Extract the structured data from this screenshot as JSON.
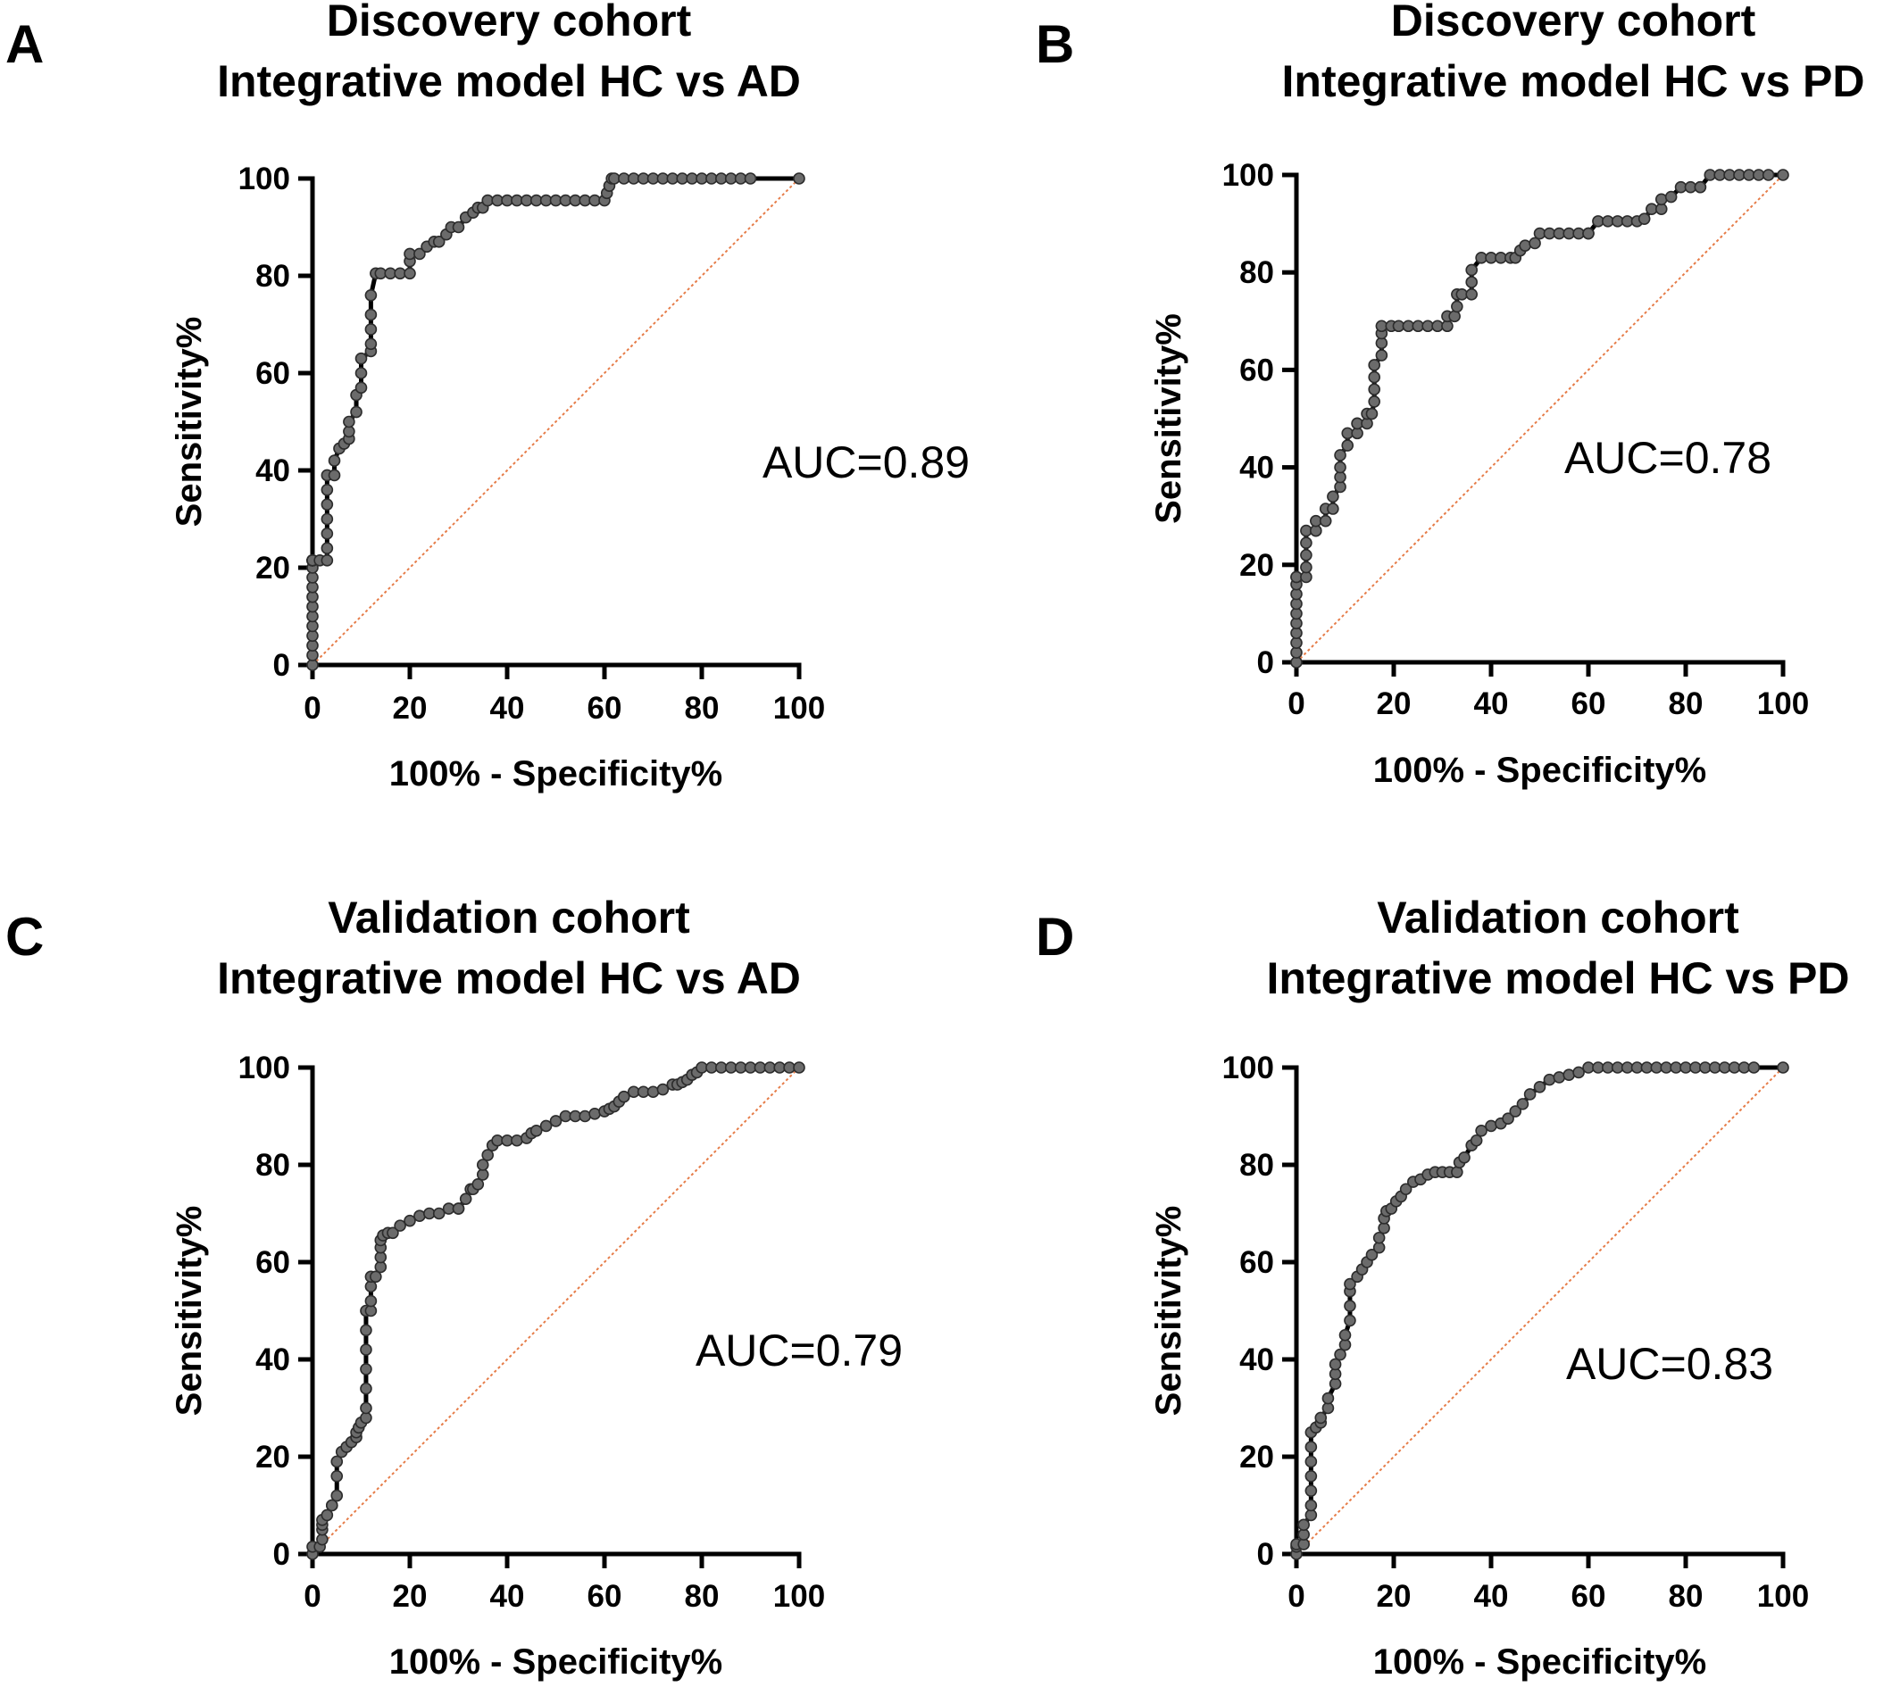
{
  "chart_data": [
    {
      "type": "line",
      "panel_label": "A",
      "title_line1": "Discovery cohort",
      "title_line2": "Integrative model HC vs AD",
      "xlabel": "100% - Specificity%",
      "ylabel": "Sensitivity%",
      "xlim": [
        0,
        100
      ],
      "ylim": [
        0,
        100
      ],
      "x_ticks": [
        0,
        20,
        40,
        60,
        80,
        100
      ],
      "y_ticks": [
        0,
        20,
        40,
        60,
        80,
        100
      ],
      "annotation": "AUC=0.89",
      "reference_line": {
        "x": [
          0,
          100
        ],
        "y": [
          0,
          100
        ],
        "color": "#e67c48",
        "style": "dotted"
      },
      "series": [
        {
          "x": [
            0,
            0,
            0,
            0,
            0,
            0,
            0,
            0,
            0,
            0,
            0,
            0,
            0,
            0,
            0,
            0,
            0,
            0,
            0,
            1.5,
            3,
            3,
            3,
            3,
            3,
            3,
            3,
            4.5,
            4.5,
            5.5,
            6.5,
            7.5,
            7.5,
            7.5,
            9,
            9,
            10,
            10,
            10,
            12,
            12,
            12,
            12,
            12,
            13,
            14,
            16,
            18,
            20,
            20,
            20,
            22,
            23.5,
            25,
            26,
            27.5,
            28.5,
            30,
            31.5,
            33,
            34,
            35,
            36,
            38,
            40,
            42,
            44,
            46,
            48,
            50,
            52,
            54,
            56,
            58,
            60,
            60.5,
            61,
            61.5,
            62,
            64,
            66,
            68,
            70,
            72,
            74,
            76,
            78,
            80,
            82,
            84,
            86,
            88,
            90,
            100
          ],
          "y": [
            0,
            2,
            4,
            6,
            8,
            10,
            12,
            14,
            16,
            18,
            20,
            21.5,
            21.5,
            21.5,
            21.5,
            21.5,
            21.5,
            21.5,
            21.5,
            21.5,
            21.5,
            24,
            27,
            30,
            33,
            36,
            39,
            39,
            42,
            44.5,
            45.5,
            46.5,
            48,
            50,
            52,
            55.5,
            57,
            60,
            63,
            64.5,
            66,
            69,
            72,
            76,
            80.5,
            80.5,
            80.5,
            80.5,
            80.5,
            83,
            84.5,
            84.5,
            86,
            87,
            87,
            88.5,
            90,
            90,
            92,
            93,
            94,
            94,
            95.5,
            95.5,
            95.5,
            95.5,
            95.5,
            95.5,
            95.5,
            95.5,
            95.5,
            95.5,
            95.5,
            95.5,
            95.5,
            97,
            98.5,
            100,
            100,
            100,
            100,
            100,
            100,
            100,
            100,
            100,
            100,
            100,
            100,
            100,
            100,
            100,
            100,
            100
          ]
        }
      ]
    },
    {
      "type": "line",
      "panel_label": "B",
      "title_line1": "Discovery cohort",
      "title_line2": "Integrative model HC vs PD",
      "xlabel": "100% - Specificity%",
      "ylabel": "Sensitivity%",
      "xlim": [
        0,
        100
      ],
      "ylim": [
        0,
        100
      ],
      "x_ticks": [
        0,
        20,
        40,
        60,
        80,
        100
      ],
      "y_ticks": [
        0,
        20,
        40,
        60,
        80,
        100
      ],
      "annotation": "AUC=0.78",
      "reference_line": {
        "x": [
          0,
          100
        ],
        "y": [
          0,
          100
        ],
        "color": "#e67c48",
        "style": "dotted"
      },
      "series": [
        {
          "x": [
            0,
            0,
            0,
            0,
            0,
            0,
            0,
            0,
            0,
            0,
            0,
            2,
            2,
            2,
            2,
            2,
            4,
            4,
            4,
            6,
            6,
            7.5,
            7.5,
            9,
            9,
            9,
            9,
            10.5,
            10.5,
            12.5,
            12.5,
            12.5,
            14.5,
            14.5,
            15.5,
            16,
            16,
            16,
            16,
            17.5,
            17.5,
            17.5,
            17.5,
            19.5,
            21,
            23,
            25,
            27,
            29,
            31,
            31,
            32.5,
            33,
            33,
            34,
            36,
            36,
            36,
            38,
            40,
            42,
            44,
            45,
            46,
            47,
            49,
            50,
            52,
            54,
            56,
            58,
            60,
            60,
            62,
            64,
            66,
            68,
            70,
            71.5,
            73,
            75,
            75,
            77,
            79,
            81,
            83,
            83,
            85,
            87,
            89,
            91,
            93,
            95,
            97,
            100
          ],
          "y": [
            0,
            2,
            4,
            6,
            8,
            10,
            12,
            14,
            16,
            17.5,
            17.5,
            17.5,
            19.5,
            22,
            24.5,
            27,
            27,
            27,
            29,
            29,
            31.5,
            31.5,
            34,
            36,
            38,
            40,
            42.5,
            44.5,
            47,
            47,
            49,
            49,
            49,
            51,
            51,
            53.5,
            56,
            58.5,
            61,
            63,
            65.5,
            67.5,
            69,
            69,
            69,
            69,
            69,
            69,
            69,
            69,
            71,
            71,
            73,
            75.5,
            75.5,
            75.5,
            78,
            80.5,
            83,
            83,
            83,
            83,
            83,
            84.5,
            85.5,
            86,
            88,
            88,
            88,
            88,
            88,
            88,
            88,
            90.5,
            90.5,
            90.5,
            90.5,
            90.5,
            91,
            93,
            93,
            95,
            95.5,
            97.5,
            97.5,
            97.5,
            97.5,
            100,
            100,
            100,
            100,
            100,
            100,
            100,
            100
          ]
        }
      ]
    },
    {
      "type": "line",
      "panel_label": "C",
      "title_line1": "Validation cohort",
      "title_line2": "Integrative model HC vs AD",
      "xlabel": "100% - Specificity%",
      "ylabel": "Sensitivity%",
      "xlim": [
        0,
        100
      ],
      "ylim": [
        0,
        100
      ],
      "x_ticks": [
        0,
        20,
        40,
        60,
        80,
        100
      ],
      "y_ticks": [
        0,
        20,
        40,
        60,
        80,
        100
      ],
      "annotation": "AUC=0.79",
      "reference_line": {
        "x": [
          0,
          100
        ],
        "y": [
          0,
          100
        ],
        "color": "#e67c48",
        "style": "dotted"
      },
      "series": [
        {
          "x": [
            0,
            0,
            1.5,
            2,
            2,
            2,
            2,
            3,
            4,
            4,
            5,
            5,
            5,
            6,
            7,
            8,
            9,
            9,
            9.5,
            10,
            11,
            11,
            11,
            11,
            11,
            11,
            11,
            12,
            12,
            12,
            12,
            13,
            14,
            14,
            14,
            14,
            14.5,
            15.5,
            16.5,
            18,
            20,
            22,
            24,
            26,
            28,
            30,
            30,
            31.5,
            32.5,
            33,
            34,
            35,
            35,
            36,
            37,
            38,
            40,
            42,
            44,
            45,
            46,
            48,
            50,
            52,
            54,
            56,
            58,
            60,
            61,
            62,
            63,
            64,
            66,
            68,
            70,
            72,
            74,
            75,
            76,
            77,
            78,
            79,
            80,
            82,
            84,
            86,
            88,
            90,
            92,
            94,
            96,
            98,
            100
          ],
          "y": [
            0,
            1.5,
            1.5,
            3,
            5,
            6,
            7,
            8,
            10,
            10,
            12,
            16,
            19,
            21,
            22,
            23,
            24,
            25,
            26,
            27,
            28,
            30,
            34,
            38,
            42,
            46,
            50,
            50,
            52,
            55,
            57,
            57,
            59,
            61,
            63,
            64.5,
            65.5,
            66,
            66,
            67.5,
            68.5,
            69.5,
            70,
            70,
            71,
            71,
            71,
            73,
            75,
            75,
            76,
            78,
            80,
            82,
            84,
            85,
            85,
            85,
            85.5,
            86.5,
            87,
            88,
            89,
            90,
            90,
            90,
            90.5,
            91,
            91.5,
            92,
            93,
            94,
            95,
            95,
            95,
            95.5,
            96.5,
            96.5,
            97,
            97.5,
            98.5,
            99,
            100,
            100,
            100,
            100,
            100,
            100,
            100,
            100,
            100,
            100,
            100
          ]
        }
      ]
    },
    {
      "type": "line",
      "panel_label": "D",
      "title_line1": "Validation cohort",
      "title_line2": "Integrative model HC vs PD",
      "xlabel": "100% - Specificity%",
      "ylabel": "Sensitivity%",
      "xlim": [
        0,
        100
      ],
      "ylim": [
        0,
        100
      ],
      "x_ticks": [
        0,
        20,
        40,
        60,
        80,
        100
      ],
      "y_ticks": [
        0,
        20,
        40,
        60,
        80,
        100
      ],
      "annotation": "AUC=0.83",
      "reference_line": {
        "x": [
          0,
          100
        ],
        "y": [
          0,
          100
        ],
        "color": "#e67c48",
        "style": "dotted"
      },
      "series": [
        {
          "x": [
            0,
            0,
            0,
            1.5,
            1.5,
            1.5,
            3,
            3,
            3,
            3,
            3,
            3,
            3,
            4,
            5,
            5,
            6.5,
            6.5,
            8,
            8,
            8,
            9,
            10,
            10,
            11,
            11,
            11,
            11,
            12.5,
            13.5,
            14.5,
            15.5,
            17,
            17,
            18,
            18,
            18.5,
            19.5,
            20.5,
            21.5,
            22.5,
            24,
            25.5,
            27,
            28.5,
            30,
            31.5,
            33,
            33.5,
            34.5,
            36,
            37,
            38,
            40,
            42,
            43.5,
            45,
            46.5,
            48,
            50,
            52,
            54,
            56,
            58,
            60,
            62,
            64,
            66,
            68,
            70,
            72,
            74,
            76,
            78,
            80,
            82,
            84,
            86,
            88,
            90,
            92,
            94,
            100
          ],
          "y": [
            0,
            1.5,
            2,
            2,
            4,
            6,
            8,
            10,
            13,
            16,
            19,
            22,
            25,
            26,
            27,
            28,
            30,
            32,
            35,
            37,
            39,
            41,
            43,
            45,
            48,
            51,
            54,
            55.5,
            57,
            58.5,
            60,
            61.5,
            63,
            65,
            67,
            69,
            70.5,
            71,
            72.5,
            73.5,
            75,
            76.5,
            77,
            78,
            78.5,
            78.5,
            78.5,
            78.5,
            80.5,
            81.5,
            84,
            85,
            87,
            88,
            88.5,
            89.5,
            91,
            92.5,
            94.5,
            96,
            97.5,
            98,
            98.5,
            99,
            100,
            100,
            100,
            100,
            100,
            100,
            100,
            100,
            100,
            100,
            100,
            100,
            100,
            100,
            100,
            100,
            100,
            100,
            100
          ]
        }
      ]
    }
  ]
}
